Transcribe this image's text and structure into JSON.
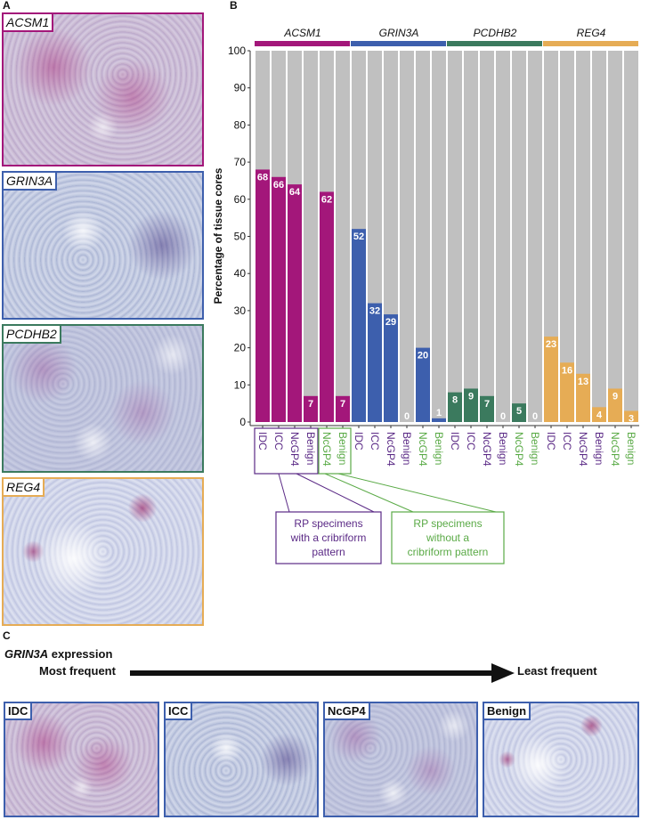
{
  "panels": {
    "a": "A",
    "b": "B",
    "c": "C"
  },
  "panel_a": {
    "images": [
      {
        "label": "ACSM1",
        "color": "#a3177a"
      },
      {
        "label": "GRIN3A",
        "color": "#3d5fad"
      },
      {
        "label": "PCDHB2",
        "color": "#3b7a5e"
      },
      {
        "label": "REG4",
        "color": "#e6ac55"
      }
    ]
  },
  "chart_data": {
    "type": "bar",
    "ylabel": "Percentage of tissue cores",
    "ylim": [
      0,
      100
    ],
    "yticks": [
      "0",
      "10",
      "20",
      "30",
      "40",
      "50",
      "60",
      "70",
      "80",
      "90",
      "100"
    ],
    "grid": false,
    "background_series_color": "#c0c0c0",
    "categories": [
      "IDC",
      "ICC",
      "NcGP4",
      "Benign",
      "NcGP4",
      "Benign"
    ],
    "category_colors": [
      "#5b2a86",
      "#5b2a86",
      "#5b2a86",
      "#5b2a86",
      "#5aaa46",
      "#5aaa46"
    ],
    "series": [
      {
        "name": "ACSM1",
        "color": "#a3177a",
        "values": [
          68,
          66,
          64,
          7,
          62,
          7
        ]
      },
      {
        "name": "GRIN3A",
        "color": "#3d5fad",
        "values": [
          52,
          32,
          29,
          0,
          20,
          1
        ]
      },
      {
        "name": "PCDHB2",
        "color": "#3b7a5e",
        "values": [
          8,
          9,
          7,
          0,
          5,
          0
        ]
      },
      {
        "name": "REG4",
        "color": "#e6ac55",
        "values": [
          23,
          16,
          13,
          4,
          9,
          3
        ]
      }
    ],
    "annotations": [
      {
        "text": [
          "RP specimens",
          "with a cribriform",
          "pattern"
        ],
        "color": "#5b2a86"
      },
      {
        "text": [
          "RP specimens",
          "without a",
          "cribriform pattern"
        ],
        "color": "#5aaa46"
      }
    ]
  },
  "panel_c": {
    "title_gene": "GRIN3A",
    "title_rest": " expression",
    "most": "Most frequent",
    "least": "Least frequent",
    "images": [
      "IDC",
      "ICC",
      "NcGP4",
      "Benign"
    ],
    "border_color": "#3d5fad"
  }
}
